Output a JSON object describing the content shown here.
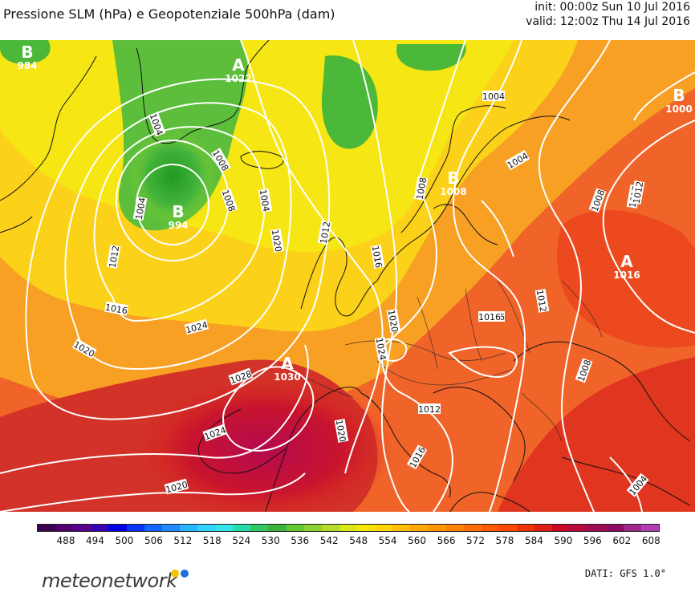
{
  "header": {
    "title": "Pressione SLM (hPa) e Geopotenziale 500hPa (dam)",
    "init": "init: 00:00z Sun 10 Jul 2016",
    "valid": "valid: 12:00z Thu 14 Jul 2016"
  },
  "map": {
    "isobar_labels": [
      "1004",
      "1012",
      "1008",
      "1004",
      "1012",
      "1016",
      "1020",
      "1024",
      "1028",
      "1020",
      "1024",
      "1020",
      "1016",
      "1012",
      "1008",
      "1004",
      "1016",
      "1020",
      "1024",
      "1012",
      "1020",
      "1016",
      "1016",
      "1012",
      "1008",
      "1008",
      "1012",
      "1004",
      "1004",
      "1008",
      "1004"
    ],
    "centers": [
      {
        "type": "B",
        "value": "984"
      },
      {
        "type": "A",
        "value": "1022"
      },
      {
        "type": "B",
        "value": "994"
      },
      {
        "type": "B",
        "value": "1000"
      },
      {
        "type": "A",
        "value": "1016"
      },
      {
        "type": "A",
        "value": "1030"
      },
      {
        "type": "B",
        "value": "1008"
      }
    ]
  },
  "colorbar": {
    "ticks": [
      "488",
      "494",
      "500",
      "506",
      "512",
      "518",
      "524",
      "530",
      "536",
      "542",
      "548",
      "554",
      "560",
      "566",
      "572",
      "578",
      "584",
      "590",
      "596",
      "602",
      "608"
    ],
    "colors": [
      "#3c0050",
      "#50006e",
      "#5a008c",
      "#3c00b4",
      "#0000e6",
      "#0a32ff",
      "#1464ff",
      "#1e8cff",
      "#28b4ff",
      "#32d2ff",
      "#32e6e6",
      "#28dcaa",
      "#32c864",
      "#3cb43c",
      "#64c832",
      "#8cd232",
      "#b4dc28",
      "#dce614",
      "#f5e600",
      "#ffd200",
      "#ffbe00",
      "#ffaa00",
      "#ff9600",
      "#ff8200",
      "#ff6e00",
      "#ff5a00",
      "#ff4600",
      "#f03200",
      "#dc1e14",
      "#c80a28",
      "#b40a3c",
      "#a00a50",
      "#8c0a64",
      "#a0288c",
      "#b43cb4"
    ]
  },
  "footer": {
    "logo": "meteonetwork",
    "source": "DATI: GFS 1.0°",
    "logo_colors": [
      "#f5c400",
      "#1e6fd9"
    ]
  }
}
